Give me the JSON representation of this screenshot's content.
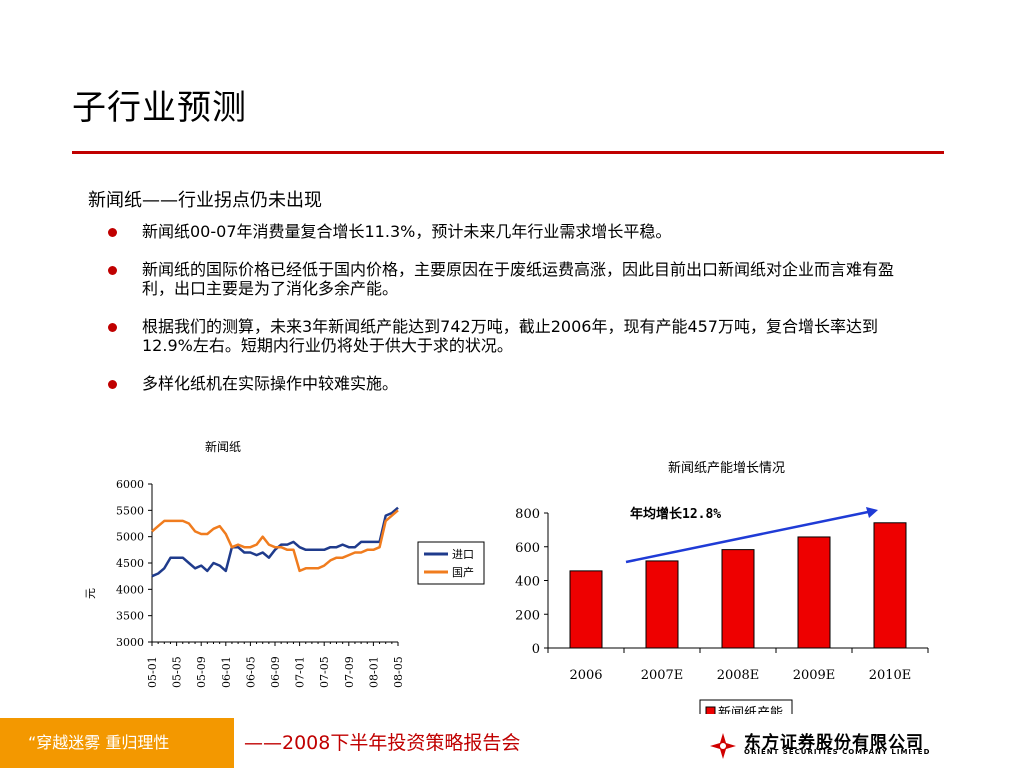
{
  "slide": {
    "title": "子行业预测",
    "subtitle": "新闻纸——行业拐点仍未出现",
    "bullets": [
      "新闻纸00-07年消费量复合增长11.3%，预计未来几年行业需求增长平稳。",
      "新闻纸的国际价格已经低于国内价格，主要原因在于废纸运费高涨，因此目前出口新闻纸对企业而言难有盈利，出口主要是为了消化多余产能。",
      "根据我们的测算，未来3年新闻纸产能达到742万吨，截止2006年，现有产能457万吨，复合增长率达到12.9%左右。短期内行业仍将处于供大于求的状况。",
      "多样化纸机在实际操作中较难实施。"
    ]
  },
  "footer": {
    "slogan": "“穿越迷雾   重归理性",
    "meeting": "——2008下半年投资策略报告会",
    "logo_cn": "东方证券股份有限公司",
    "logo_en": "ORIENT SECURITIES COMPANY LIMITED"
  },
  "colors": {
    "accent": "#c00000",
    "orange": "#f39800",
    "navy": "#1f3b8c",
    "line_orange": "#f07c1e",
    "bar_red": "#ee0000",
    "arrow_blue": "#1f3bd6"
  },
  "chart_data": [
    {
      "type": "line",
      "title": "新闻纸",
      "ylabel": "元",
      "ylim": [
        3000,
        6000
      ],
      "yticks": [
        3000,
        3500,
        4000,
        4500,
        5000,
        5500,
        6000
      ],
      "x": [
        "05-01",
        "05-02",
        "05-03",
        "05-04",
        "05-05",
        "05-06",
        "05-07",
        "05-08",
        "05-09",
        "05-10",
        "05-11",
        "05-12",
        "06-01",
        "06-02",
        "06-03",
        "06-04",
        "06-05",
        "06-06",
        "06-07",
        "06-08",
        "06-09",
        "06-10",
        "06-11",
        "06-12",
        "07-01",
        "07-02",
        "07-03",
        "07-04",
        "07-05",
        "07-06",
        "07-07",
        "07-08",
        "07-09",
        "07-10",
        "07-11",
        "07-12",
        "08-01",
        "08-02",
        "08-03",
        "08-04",
        "08-05"
      ],
      "xtick_labels": [
        "05-01",
        "05-05",
        "05-09",
        "06-01",
        "06-05",
        "06-09",
        "07-01",
        "07-05",
        "07-09",
        "08-01",
        "08-05"
      ],
      "series": [
        {
          "name": "进口",
          "values": [
            4250,
            4300,
            4400,
            4600,
            4600,
            4600,
            4500,
            4400,
            4450,
            4350,
            4500,
            4450,
            4350,
            4800,
            4800,
            4700,
            4700,
            4650,
            4700,
            4600,
            4750,
            4850,
            4850,
            4900,
            4800,
            4750,
            4750,
            4750,
            4750,
            4800,
            4800,
            4850,
            4800,
            4800,
            4900,
            4900,
            4900,
            4900,
            5400,
            5450,
            5550
          ]
        },
        {
          "name": "国产",
          "values": [
            5100,
            5200,
            5300,
            5300,
            5300,
            5300,
            5250,
            5100,
            5050,
            5050,
            5150,
            5200,
            5050,
            4800,
            4850,
            4800,
            4800,
            4850,
            5000,
            4850,
            4800,
            4800,
            4750,
            4750,
            4350,
            4400,
            4400,
            4400,
            4450,
            4550,
            4600,
            4600,
            4650,
            4700,
            4700,
            4750,
            4750,
            4800,
            5300,
            5400,
            5500
          ]
        }
      ]
    },
    {
      "type": "bar",
      "title": "新闻纸产能增长情况",
      "categories": [
        "2006",
        "2007E",
        "2008E",
        "2009E",
        "2010E"
      ],
      "series": [
        {
          "name": "新闻纸产能",
          "values": [
            457,
            516,
            583,
            658,
            742
          ]
        }
      ],
      "ylim": [
        0,
        800
      ],
      "yticks": [
        0,
        200,
        400,
        600,
        800
      ],
      "annotation": "年均增长12.8%"
    }
  ]
}
